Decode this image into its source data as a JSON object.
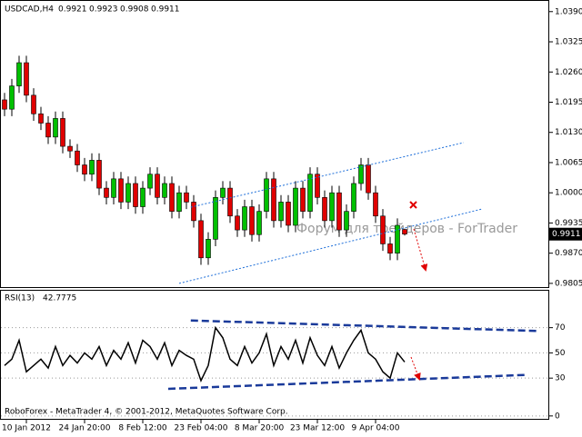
{
  "chart_data": [
    {
      "type": "candlestick",
      "title": "USDCAD,H4",
      "watermark": "Форум для трейдеров - ForTrader",
      "xlim": [
        -0.625,
        74.875
      ],
      "ylim": [
        0.9797,
        1.0415
      ],
      "yticks": [
        {
          "value": 1.039,
          "label": "1.0390"
        },
        1.0325,
        {
          "value": 1.026,
          "label": "1.0260"
        },
        1.0195,
        {
          "value": 1.013,
          "label": "1.0130"
        },
        1.0065,
        {
          "value": 1,
          "label": "1.0000"
        },
        0.9935,
        {
          "value": 0.987,
          "label": "0.9870"
        },
        0.9805
      ],
      "up_color": "#00c000",
      "down_color": "#e00000",
      "open": [
        1.02,
        1.018,
        1.023,
        1.028,
        1.021,
        1.017,
        1.015,
        1.012,
        1.016,
        1.01,
        1.009,
        1.006,
        1.004,
        1.007,
        1.001,
        0.999,
        1.003,
        0.998,
        1.002,
        0.997,
        1.001,
        1.004,
        0.999,
        1.002,
        0.996,
        1.0,
        0.998,
        0.994,
        0.986,
        0.99,
        0.999,
        1.001,
        0.995,
        0.992,
        0.997,
        0.991,
        0.996,
        1.003,
        0.994,
        0.998,
        0.993,
        1.001,
        0.996,
        1.004,
        0.999,
        0.994,
        1.0,
        0.992,
        0.996,
        1.002,
        1.006,
        1.0,
        0.995,
        0.989,
        0.987,
        0.9921
      ],
      "high": [
        1.0215,
        1.0245,
        1.0295,
        1.0295,
        1.0225,
        1.0185,
        1.0165,
        1.0175,
        1.0175,
        1.0115,
        1.0105,
        1.0075,
        1.0085,
        1.0085,
        1.0025,
        1.0045,
        1.0045,
        1.0035,
        1.0035,
        1.0025,
        1.0055,
        1.0055,
        1.0035,
        1.0035,
        1.0015,
        1.0015,
        0.9995,
        0.9955,
        0.9915,
        1.0005,
        1.0025,
        1.0025,
        0.9965,
        0.9985,
        0.9985,
        0.9975,
        1.0045,
        1.0045,
        0.9995,
        0.9995,
        1.0025,
        1.0025,
        1.0055,
        1.0055,
        1.0005,
        1.0015,
        1.0015,
        0.9975,
        1.0035,
        1.0075,
        1.0075,
        1.0015,
        0.9965,
        0.9905,
        0.9945,
        0.9923
      ],
      "low": [
        1.0165,
        1.0165,
        1.0215,
        1.0195,
        1.0155,
        1.0135,
        1.0105,
        1.0105,
        1.0085,
        1.0075,
        1.0045,
        1.0025,
        1.0025,
        0.9995,
        0.9975,
        0.9975,
        0.9965,
        0.9965,
        0.9955,
        0.9955,
        0.9995,
        0.9975,
        0.9975,
        0.9945,
        0.9945,
        0.9965,
        0.9925,
        0.9845,
        0.9845,
        0.9885,
        0.9975,
        0.9935,
        0.9905,
        0.9905,
        0.9895,
        0.9895,
        0.9945,
        0.9925,
        0.9925,
        0.9915,
        0.9915,
        0.9945,
        0.9945,
        0.9975,
        0.9925,
        0.9925,
        0.9905,
        0.9905,
        0.9945,
        1.0005,
        0.9985,
        0.9935,
        0.9875,
        0.9855,
        0.9855,
        0.9908
      ],
      "close": [
        1.018,
        1.023,
        1.028,
        1.021,
        1.017,
        1.015,
        1.012,
        1.016,
        1.01,
        1.009,
        1.006,
        1.004,
        1.007,
        1.001,
        0.999,
        1.003,
        0.998,
        1.002,
        0.997,
        1.001,
        1.004,
        0.999,
        1.002,
        0.996,
        1.0,
        0.998,
        0.994,
        0.986,
        0.99,
        0.999,
        1.001,
        0.995,
        0.992,
        0.997,
        0.991,
        0.996,
        1.003,
        0.994,
        0.998,
        0.993,
        1.001,
        0.996,
        1.004,
        0.999,
        0.994,
        1.0,
        0.992,
        0.996,
        1.002,
        1.006,
        1.0,
        0.995,
        0.989,
        0.987,
        0.993,
        0.9911
      ],
      "trendlines": [
        {
          "color": "#1e6fd9",
          "x": [
            25.6,
            63.1
          ],
          "y": [
            0.9969,
            1.0108
          ]
        },
        {
          "color": "#1e6fd9",
          "x": [
            24.0,
            65.6
          ],
          "y": [
            0.9805,
            0.9965
          ]
        }
      ]
    },
    {
      "type": "line",
      "title": "RSI(13)",
      "xlim": [
        -0.625,
        74.875
      ],
      "ylim": [
        -3,
        100
      ],
      "yticks": [
        0,
        30,
        50,
        70
      ],
      "xticks": [
        {
          "value": 3,
          "label": "10 Jan 2012"
        },
        {
          "value": 11,
          "label": "24 Jan 20:00"
        },
        {
          "value": 19,
          "label": "8 Feb 12:00"
        },
        {
          "value": 27,
          "label": "23 Feb 04:00"
        },
        {
          "value": 35,
          "label": "8 Mar 20:00"
        },
        {
          "value": 43,
          "label": "23 Mar 12:00"
        },
        {
          "value": 51,
          "label": "9 Apr 04:00"
        }
      ],
      "series": [
        {
          "name": "RSI(13)",
          "color": "#000000",
          "values": [
            40,
            45,
            60,
            35,
            40,
            45,
            38,
            55,
            40,
            48,
            42,
            50,
            45,
            55,
            40,
            52,
            45,
            58,
            42,
            60,
            55,
            45,
            58,
            40,
            52,
            48,
            45,
            28,
            40,
            70,
            62,
            45,
            40,
            55,
            42,
            50,
            65,
            40,
            55,
            45,
            60,
            42,
            62,
            48,
            40,
            55,
            38,
            50,
            60,
            68,
            50,
            45,
            35,
            30,
            50,
            42.7775
          ]
        }
      ],
      "trendlines": [
        {
          "color": "#1a3a9a",
          "x": [
            25.6,
            73.1
          ],
          "y": [
            75.7,
            67.4
          ]
        },
        {
          "color": "#1a3a9a",
          "x": [
            22.5,
            71.9
          ],
          "y": [
            21.5,
            32.6
          ]
        }
      ]
    }
  ],
  "footer": "RoboForex - MetaTrader 4, © 2001-2012, MetaQuotes Software Corp."
}
